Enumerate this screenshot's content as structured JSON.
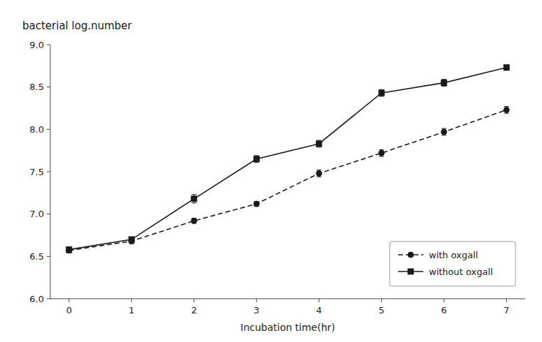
{
  "chart_data": {
    "type": "line",
    "xlabel": "Incubation time(hr)",
    "ylabel": "bacterial log.number",
    "x": [
      0,
      1,
      2,
      3,
      4,
      5,
      6,
      7
    ],
    "xlim": [
      -0.3,
      7.3
    ],
    "ylim": [
      6.0,
      9.0
    ],
    "xticks": [
      0,
      1,
      2,
      3,
      4,
      5,
      6,
      7
    ],
    "yticks": [
      {
        "value": 6.0,
        "label": "6.0"
      },
      6.5,
      {
        "value": 7.0,
        "label": "7.0"
      },
      7.5,
      {
        "value": 8.0,
        "label": "8.0"
      },
      8.5,
      {
        "value": 9.0,
        "label": "9.0"
      }
    ],
    "grid": false,
    "legend": "lower right",
    "series": [
      {
        "name": "with oxgall",
        "color": "#1a1a1a",
        "marker": "circle",
        "line_style": "dashed",
        "values": [
          6.57,
          6.68,
          6.92,
          7.12,
          7.48,
          7.72,
          7.97,
          8.23
        ],
        "errors": [
          0.03,
          0.03,
          0.03,
          0.03,
          0.04,
          0.04,
          0.04,
          0.04
        ]
      },
      {
        "name": "without oxgall",
        "color": "#1a1a1a",
        "marker": "square",
        "line_style": "solid",
        "values": [
          6.58,
          6.7,
          7.18,
          7.65,
          7.83,
          8.43,
          8.55,
          8.73
        ],
        "errors": [
          0.03,
          0.03,
          0.05,
          0.04,
          0.04,
          0.04,
          0.04,
          0.03
        ]
      }
    ]
  }
}
